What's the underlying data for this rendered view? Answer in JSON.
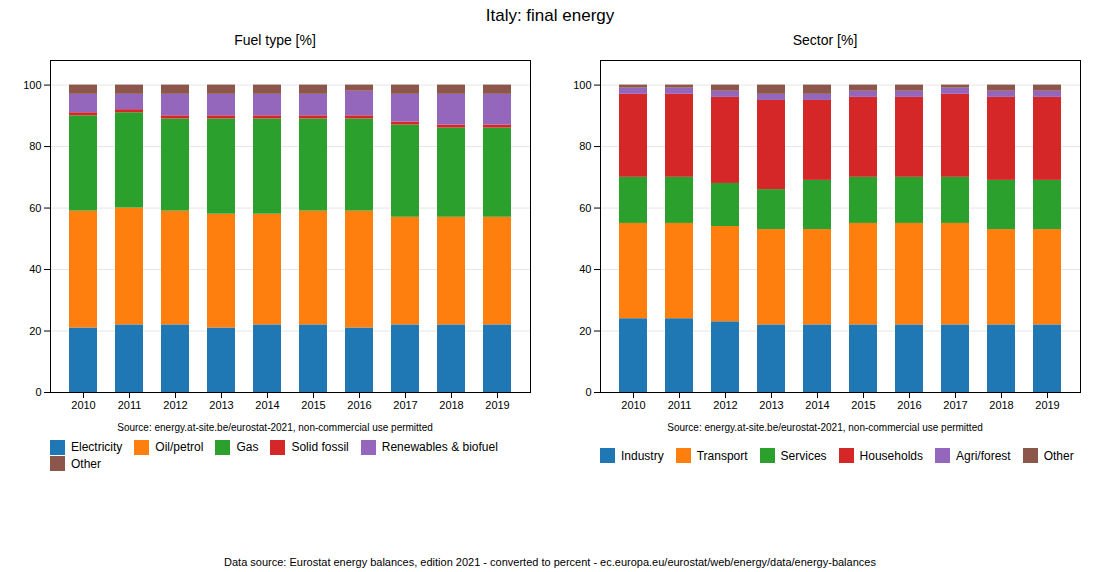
{
  "title": "Italy: final energy",
  "annotations": [
    "Data source: Eurostat energy balances, edition 2021 - converted to percent - ec.europa.eu/eurostat/web/energy/data/energy-balances"
  ],
  "chart_data": [
    {
      "type": "bar",
      "stacked": true,
      "title": "Fuel type [%]",
      "categories": [
        2010,
        2011,
        2012,
        2013,
        2014,
        2015,
        2016,
        2017,
        2018,
        2019
      ],
      "series": [
        {
          "name": "Electricity",
          "color": "#1f77b4",
          "values": [
            21,
            22,
            22,
            21,
            22,
            22,
            21,
            22,
            22,
            22
          ]
        },
        {
          "name": "Oil/petrol",
          "color": "#ff7f0e",
          "values": [
            38,
            38,
            37,
            37,
            36,
            37,
            38,
            35,
            35,
            35
          ]
        },
        {
          "name": "Gas",
          "color": "#2ca02c",
          "values": [
            31,
            31,
            30,
            31,
            31,
            30,
            30,
            30,
            29,
            29
          ]
        },
        {
          "name": "Solid fossil",
          "color": "#d62728",
          "values": [
            1,
            1,
            1,
            1,
            1,
            1,
            1,
            1,
            1,
            1
          ]
        },
        {
          "name": "Renewables & biofuel",
          "color": "#9467bd",
          "values": [
            6,
            5,
            7,
            7,
            7,
            7,
            8,
            9,
            10,
            10
          ]
        },
        {
          "name": "Other",
          "color": "#8c564b",
          "values": [
            3,
            3,
            3,
            3,
            3,
            3,
            2,
            3,
            3,
            3
          ]
        }
      ],
      "ylim": [
        0,
        108
      ],
      "yticks": [
        0,
        20,
        40,
        60,
        80,
        100
      ],
      "grid": true,
      "legend": "bottom",
      "annotations": [
        "Source: energy.at-site.be/eurostat-2021, non-commercial use permitted"
      ]
    },
    {
      "type": "bar",
      "stacked": true,
      "title": "Sector [%]",
      "categories": [
        2010,
        2011,
        2012,
        2013,
        2014,
        2015,
        2016,
        2017,
        2018,
        2019
      ],
      "series": [
        {
          "name": "Industry",
          "color": "#1f77b4",
          "values": [
            24,
            24,
            23,
            22,
            22,
            22,
            22,
            22,
            22,
            22
          ]
        },
        {
          "name": "Transport",
          "color": "#ff7f0e",
          "values": [
            31,
            31,
            31,
            31,
            31,
            33,
            33,
            33,
            31,
            31
          ]
        },
        {
          "name": "Services",
          "color": "#2ca02c",
          "values": [
            15,
            15,
            14,
            13,
            16,
            15,
            15,
            15,
            16,
            16
          ]
        },
        {
          "name": "Households",
          "color": "#d62728",
          "values": [
            27,
            27,
            28,
            29,
            26,
            26,
            26,
            27,
            27,
            27
          ]
        },
        {
          "name": "Agri/forest",
          "color": "#9467bd",
          "values": [
            2,
            2,
            2,
            2,
            2,
            2,
            2,
            2,
            2,
            2
          ]
        },
        {
          "name": "Other",
          "color": "#8c564b",
          "values": [
            1,
            1,
            2,
            3,
            3,
            2,
            2,
            1,
            2,
            2
          ]
        }
      ],
      "ylim": [
        0,
        108
      ],
      "yticks": [
        0,
        20,
        40,
        60,
        80,
        100
      ],
      "grid": true,
      "legend": "bottom",
      "annotations": [
        "Source: energy.at-site.be/eurostat-2021, non-commercial use permitted"
      ]
    }
  ]
}
